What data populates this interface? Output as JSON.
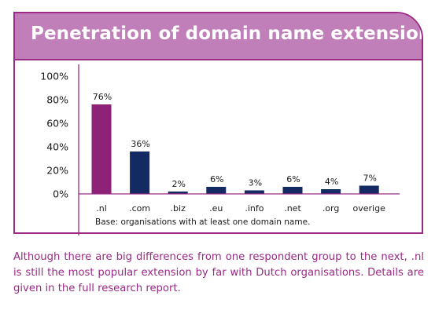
{
  "colors": {
    "accent": "#9a2a86",
    "header_bg": "#c17fb9",
    "highlight_bar": "#8e2278",
    "bar": "#142a63",
    "axis": "#9a2a86"
  },
  "chart_data": {
    "type": "bar",
    "title": "Penetration of domain name extensions",
    "categories": [
      ".nl",
      ".com",
      ".biz",
      ".eu",
      ".info",
      ".net",
      ".org",
      "overige"
    ],
    "values": [
      76,
      36,
      2,
      6,
      3,
      6,
      4,
      7
    ],
    "value_labels": [
      "76%",
      "36%",
      "2%",
      "6%",
      "3%",
      "6%",
      "4%",
      "7%"
    ],
    "highlight_index": 0,
    "ylim": [
      0,
      100
    ],
    "yticks": [
      0,
      20,
      40,
      60,
      80,
      100
    ],
    "ytick_labels": [
      "0%",
      "20%",
      "40%",
      "60%",
      "80%",
      "100%"
    ],
    "grid": false,
    "note": "Base: organisations with at least one domain name."
  },
  "caption": "Although there are big differences from one respondent group to the next, .nl is still the most popular extension by far with Dutch organisations. Details are given in the full research report."
}
